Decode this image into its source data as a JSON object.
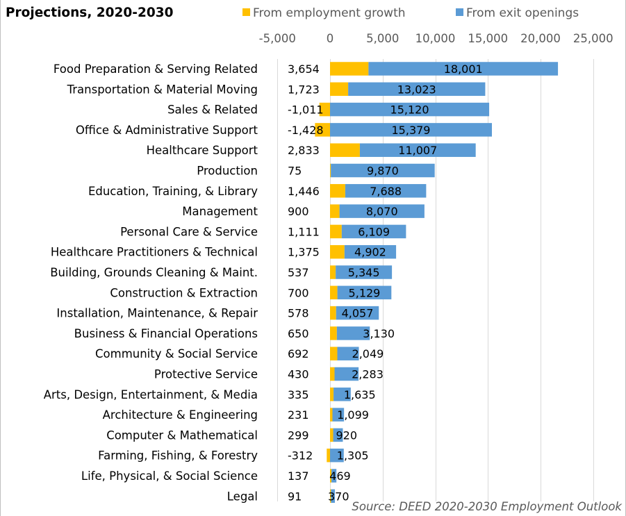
{
  "title": "Projections, 2020-2030",
  "source": "Source: DEED 2020-2030 Employment Outlook",
  "colors": {
    "employment_growth": "#FFC000",
    "exit_openings": "#5B9BD5",
    "grid": "#D9D9D9",
    "frame": "#BFBFBF"
  },
  "chart_data": {
    "type": "bar",
    "orientation": "horizontal",
    "stacked": true,
    "legend_position": "top",
    "grid": true,
    "axis_position": "top",
    "xlim": [
      -5000,
      25000
    ],
    "xticks": [
      -5000,
      0,
      5000,
      10000,
      15000,
      20000,
      25000
    ],
    "xtick_labels": [
      "-5,000",
      "0",
      "5,000",
      "10,000",
      "15,000",
      "20,000",
      "25,000"
    ],
    "categories": [
      "Food Preparation & Serving Related",
      "Transportation & Material Moving",
      "Sales & Related",
      "Office & Administrative Support",
      "Healthcare Support",
      "Production",
      "Education, Training, & Library",
      "Management",
      "Personal Care & Service",
      "Healthcare Practitioners & Technical",
      "Building, Grounds Cleaning & Maint.",
      "Construction & Extraction",
      "Installation, Maintenance, & Repair",
      "Business & Financial Operations",
      "Community & Social Service",
      "Protective Service",
      "Arts, Design, Entertainment, & Media",
      "Architecture & Engineering",
      "Computer & Mathematical",
      "Farming, Fishing, & Forestry",
      "Life, Physical, & Social Science",
      "Legal"
    ],
    "series": [
      {
        "name": "From employment growth",
        "values": [
          3654,
          1723,
          -1011,
          -1428,
          2833,
          75,
          1446,
          900,
          1111,
          1375,
          537,
          700,
          578,
          650,
          692,
          430,
          335,
          231,
          299,
          -312,
          137,
          91
        ],
        "labels": [
          "3,654",
          "1,723",
          "-1,011",
          "-1,428",
          "2,833",
          "75",
          "1,446",
          "900",
          "1,111",
          "1,375",
          "537",
          "700",
          "578",
          "650",
          "692",
          "430",
          "335",
          "231",
          "299",
          "-312",
          "137",
          "91"
        ]
      },
      {
        "name": "From exit openings",
        "values": [
          18001,
          13023,
          15120,
          15379,
          11007,
          9870,
          7688,
          8070,
          6109,
          4902,
          5345,
          5129,
          4057,
          3130,
          2049,
          2283,
          1635,
          1099,
          920,
          1305,
          469,
          370
        ],
        "labels": [
          "18,001",
          "13,023",
          "15,120",
          "15,379",
          "11,007",
          "9,870",
          "7,688",
          "8,070",
          "6,109",
          "4,902",
          "5,345",
          "5,129",
          "4,057",
          "3,130",
          "2,049",
          "2,283",
          "1,635",
          "1,099",
          "920",
          "1,305",
          "469",
          "370"
        ]
      }
    ]
  }
}
